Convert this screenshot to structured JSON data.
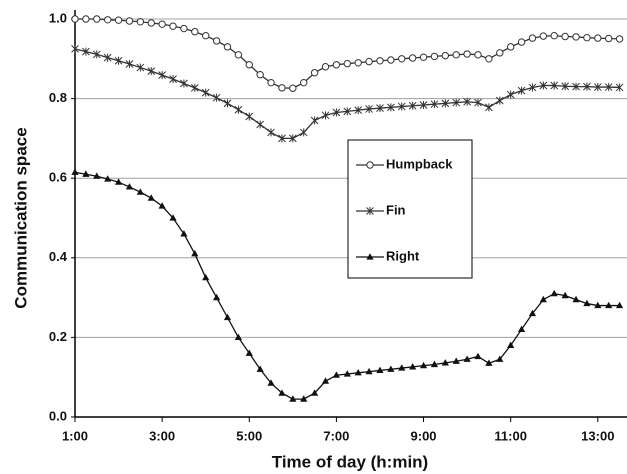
{
  "chart_data": {
    "type": "line",
    "x_label": "Time of day (h:min)",
    "y_label": "Communication space",
    "x": [
      1,
      1.25,
      1.5,
      1.75,
      2,
      2.25,
      2.5,
      2.75,
      3,
      3.25,
      3.5,
      3.75,
      4,
      4.25,
      4.5,
      4.75,
      5,
      5.25,
      5.5,
      5.75,
      6,
      6.25,
      6.5,
      6.75,
      7,
      7.25,
      7.5,
      7.75,
      8,
      8.25,
      8.5,
      8.75,
      9,
      9.25,
      9.5,
      9.75,
      10,
      10.25,
      10.5,
      10.75,
      11,
      11.25,
      11.5,
      11.75,
      12,
      12.25,
      12.5,
      12.75,
      13,
      13.25,
      13.5
    ],
    "series": [
      {
        "name": "Humpback",
        "color": "#333333",
        "marker": "circle",
        "values": [
          1,
          1,
          1,
          0.998,
          0.997,
          0.995,
          0.993,
          0.99,
          0.987,
          0.982,
          0.976,
          0.968,
          0.958,
          0.945,
          0.93,
          0.91,
          0.885,
          0.86,
          0.84,
          0.827,
          0.826,
          0.84,
          0.865,
          0.88,
          0.885,
          0.888,
          0.89,
          0.893,
          0.895,
          0.897,
          0.9,
          0.902,
          0.904,
          0.906,
          0.908,
          0.91,
          0.912,
          0.91,
          0.9,
          0.915,
          0.93,
          0.942,
          0.952,
          0.957,
          0.958,
          0.956,
          0.955,
          0.953,
          0.952,
          0.951,
          0.95
        ]
      },
      {
        "name": "Fin",
        "color": "#333333",
        "marker": "asterisk",
        "values": [
          0.925,
          0.918,
          0.911,
          0.903,
          0.895,
          0.887,
          0.878,
          0.869,
          0.859,
          0.849,
          0.838,
          0.827,
          0.815,
          0.802,
          0.788,
          0.772,
          0.755,
          0.735,
          0.715,
          0.7,
          0.7,
          0.715,
          0.745,
          0.758,
          0.765,
          0.768,
          0.771,
          0.774,
          0.776,
          0.778,
          0.78,
          0.782,
          0.784,
          0.786,
          0.788,
          0.79,
          0.792,
          0.79,
          0.778,
          0.795,
          0.81,
          0.82,
          0.828,
          0.833,
          0.833,
          0.831,
          0.83,
          0.83,
          0.829,
          0.829,
          0.828
        ]
      },
      {
        "name": "Right",
        "color": "#111111",
        "marker": "triangle",
        "values": [
          0.615,
          0.61,
          0.605,
          0.598,
          0.59,
          0.578,
          0.565,
          0.55,
          0.53,
          0.5,
          0.46,
          0.41,
          0.35,
          0.3,
          0.25,
          0.2,
          0.16,
          0.12,
          0.085,
          0.06,
          0.045,
          0.045,
          0.06,
          0.09,
          0.105,
          0.108,
          0.111,
          0.114,
          0.117,
          0.12,
          0.123,
          0.126,
          0.129,
          0.132,
          0.136,
          0.14,
          0.145,
          0.152,
          0.135,
          0.145,
          0.18,
          0.22,
          0.26,
          0.295,
          0.31,
          0.305,
          0.295,
          0.285,
          0.28,
          0.28,
          0.28
        ]
      }
    ],
    "xlim": [
      1,
      13.67
    ],
    "xticks": [
      {
        "value": 1,
        "label": "1:00"
      },
      {
        "value": 3,
        "label": "3:00"
      },
      {
        "value": 5,
        "label": "5:00"
      },
      {
        "value": 7,
        "label": "7:00"
      },
      {
        "value": 9,
        "label": "9:00"
      },
      {
        "value": 11,
        "label": "11:00"
      },
      {
        "value": 13,
        "label": "13:00"
      }
    ],
    "ylim": [
      0,
      1
    ],
    "yticks": [
      {
        "value": 0,
        "label": "0.0"
      },
      0.2,
      0.4,
      0.6,
      0.8,
      {
        "value": 1,
        "label": "1.0"
      }
    ],
    "grid": true,
    "legend": "center"
  }
}
